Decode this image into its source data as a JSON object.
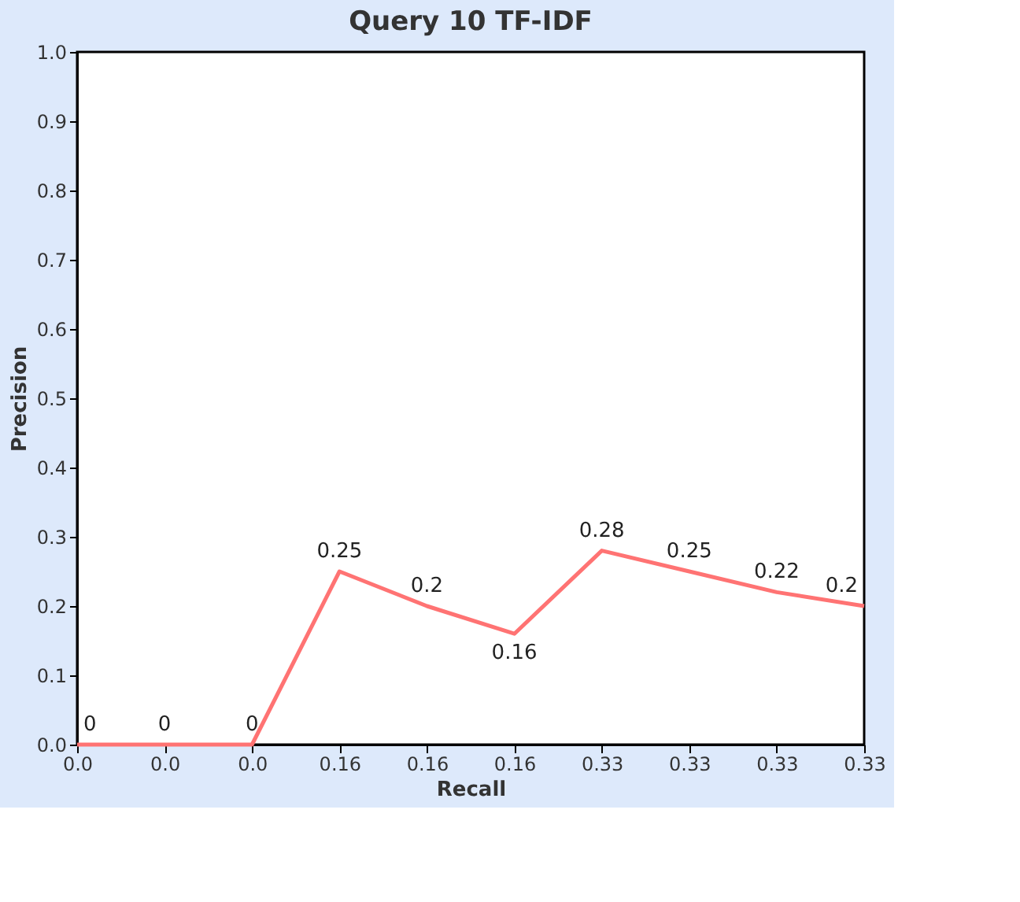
{
  "chart_data": {
    "type": "line",
    "title": "Query 10 TF-IDF",
    "xlabel": "Recall",
    "ylabel": "Precision",
    "categories": [
      "0.0",
      "0.0",
      "0.0",
      "0.16",
      "0.16",
      "0.16",
      "0.33",
      "0.33",
      "0.33",
      "0.33"
    ],
    "series": [
      {
        "color": "#ff7373",
        "values": [
          0,
          0,
          0,
          0.25,
          0.2,
          0.16,
          0.28,
          0.25,
          0.22,
          0.2
        ]
      }
    ],
    "ylim": [
      0,
      1
    ],
    "yticks": [
      {
        "value": 0,
        "label": "0.0"
      },
      {
        "value": 0.1,
        "label": "0.1"
      },
      {
        "value": 0.2,
        "label": "0.2"
      },
      {
        "value": 0.3,
        "label": "0.3"
      },
      {
        "value": 0.4,
        "label": "0.4"
      },
      {
        "value": 0.5,
        "label": "0.5"
      },
      {
        "value": 0.6,
        "label": "0.6"
      },
      {
        "value": 0.7,
        "label": "0.7"
      },
      {
        "value": 0.8,
        "label": "0.8"
      },
      {
        "value": 0.9,
        "label": "0.9"
      },
      {
        "value": 1,
        "label": "1.0"
      }
    ],
    "data_labels": true,
    "grid": false,
    "marker": "none",
    "line_style": "solid"
  }
}
